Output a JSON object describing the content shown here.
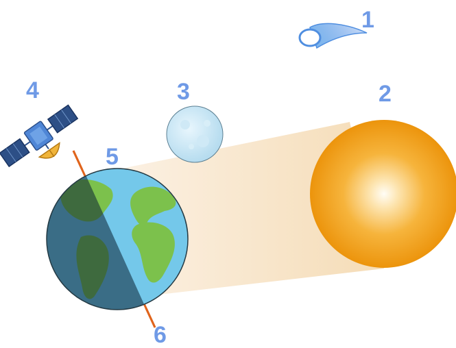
{
  "labels": {
    "comet": "1",
    "sun": "2",
    "moon": "3",
    "satellite": "4",
    "earth_north": "5",
    "earth_south": "6"
  },
  "icons": {
    "comet": "comet-icon",
    "sun": "sun-icon",
    "moon": "moon-icon",
    "satellite": "satellite-icon",
    "earth": "earth-icon",
    "axis": "earth-axis-line",
    "light_beam": "sunlight-beam"
  },
  "colors": {
    "label": "#6f9ae6",
    "sun_core": "#fff8e8",
    "sun_edge": "#ef9a0f",
    "beam": "#f7e3c4",
    "ocean_day": "#74c8ea",
    "land_day": "#7cc14c",
    "axis": "#e0641c",
    "comet": "#6fa8e8"
  }
}
